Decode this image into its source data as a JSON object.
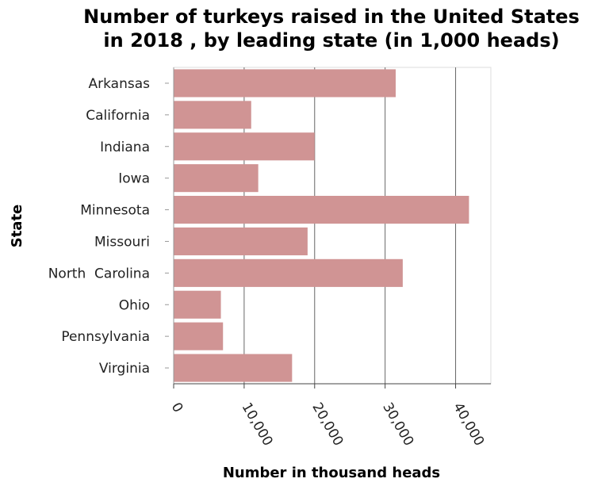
{
  "chart_data": {
    "type": "bar",
    "orientation": "horizontal",
    "title_lines": [
      "Number of turkeys raised in the United States",
      "in 2018 , by leading state (in 1,000 heads)"
    ],
    "xlabel": "Number in thousand heads",
    "ylabel": "State",
    "categories": [
      "Arkansas",
      "California",
      "Indiana",
      "Iowa",
      "Minnesota",
      "Missouri",
      "North  Carolina",
      "Ohio",
      "Pennsylvania",
      "Virginia"
    ],
    "values": [
      31500,
      11000,
      20000,
      12000,
      41900,
      19000,
      32500,
      6700,
      7000,
      16800
    ],
    "xlim": [
      0,
      45000
    ],
    "xticks": [
      0,
      10000,
      20000,
      30000,
      40000
    ],
    "xtick_labels": [
      "0",
      "10,000",
      "20,000",
      "30,000",
      "40,000"
    ],
    "grid": "vertical",
    "bar_color": "#d09494",
    "grid_color": "#666666"
  }
}
